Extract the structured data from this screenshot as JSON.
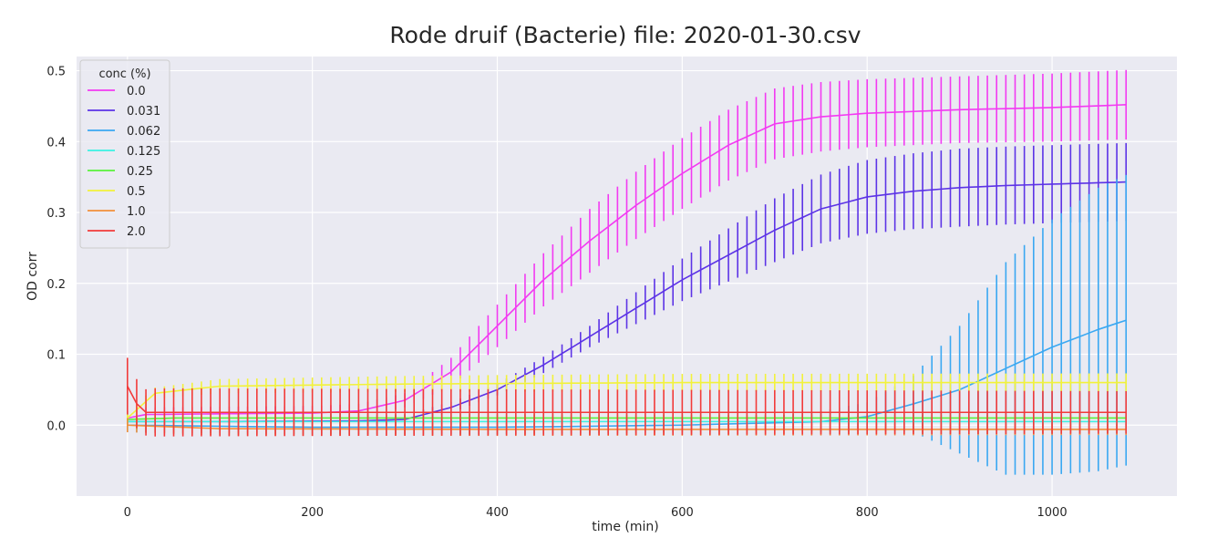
{
  "chart_data": {
    "type": "line",
    "title": "Rode druif (Bacterie) file: 2020-01-30.csv",
    "xlabel": "time (min)",
    "ylabel": "OD corr",
    "xlim": [
      -55,
      1135
    ],
    "ylim": [
      -0.1,
      0.52
    ],
    "x_ticks": [
      0,
      200,
      400,
      600,
      800,
      1000
    ],
    "y_ticks": [
      0.0,
      0.1,
      0.2,
      0.3,
      0.4,
      0.5
    ],
    "x_tick_labels": [
      "0",
      "200",
      "400",
      "600",
      "800",
      "1000"
    ],
    "y_tick_labels": [
      "0.0",
      "0.1",
      "0.2",
      "0.3",
      "0.4",
      "0.5"
    ],
    "grid": true,
    "legend": {
      "title": "conc (%)",
      "placement": "top-left"
    },
    "plot_background": "#eaeaf2",
    "sampling_interval_min": 10,
    "series": [
      {
        "name": "0.0",
        "color": "#f23af2",
        "points": [
          [
            0,
            0.01
          ],
          [
            20,
            0.015
          ],
          [
            100,
            0.016
          ],
          [
            200,
            0.017
          ],
          [
            250,
            0.02
          ],
          [
            300,
            0.035
          ],
          [
            350,
            0.075
          ],
          [
            400,
            0.14
          ],
          [
            450,
            0.205
          ],
          [
            500,
            0.26
          ],
          [
            550,
            0.31
          ],
          [
            600,
            0.355
          ],
          [
            650,
            0.395
          ],
          [
            700,
            0.425
          ],
          [
            750,
            0.435
          ],
          [
            800,
            0.44
          ],
          [
            900,
            0.445
          ],
          [
            1000,
            0.448
          ],
          [
            1080,
            0.452
          ]
        ],
        "error": [
          [
            0,
            0.01
          ],
          [
            300,
            0.01
          ],
          [
            400,
            0.03
          ],
          [
            500,
            0.045
          ],
          [
            600,
            0.05
          ],
          [
            700,
            0.05
          ],
          [
            800,
            0.048
          ],
          [
            900,
            0.047
          ],
          [
            1000,
            0.048
          ],
          [
            1080,
            0.049
          ]
        ]
      },
      {
        "name": "0.031",
        "color": "#5c33e6",
        "points": [
          [
            0,
            0.005
          ],
          [
            100,
            0.005
          ],
          [
            250,
            0.006
          ],
          [
            300,
            0.008
          ],
          [
            350,
            0.025
          ],
          [
            400,
            0.05
          ],
          [
            450,
            0.085
          ],
          [
            500,
            0.125
          ],
          [
            550,
            0.165
          ],
          [
            600,
            0.205
          ],
          [
            650,
            0.24
          ],
          [
            700,
            0.275
          ],
          [
            750,
            0.305
          ],
          [
            800,
            0.322
          ],
          [
            850,
            0.33
          ],
          [
            900,
            0.335
          ],
          [
            950,
            0.338
          ],
          [
            1000,
            0.34
          ],
          [
            1080,
            0.343
          ]
        ],
        "error": [
          [
            0,
            0.005
          ],
          [
            400,
            0.008
          ],
          [
            500,
            0.015
          ],
          [
            600,
            0.03
          ],
          [
            700,
            0.045
          ],
          [
            800,
            0.052
          ],
          [
            900,
            0.055
          ],
          [
            1000,
            0.055
          ],
          [
            1080,
            0.055
          ]
        ]
      },
      {
        "name": "0.062",
        "color": "#3aa8f2",
        "points": [
          [
            0,
            0.0
          ],
          [
            200,
            -0.003
          ],
          [
            400,
            -0.003
          ],
          [
            600,
            0.0
          ],
          [
            750,
            0.005
          ],
          [
            800,
            0.012
          ],
          [
            850,
            0.03
          ],
          [
            900,
            0.05
          ],
          [
            950,
            0.08
          ],
          [
            1000,
            0.11
          ],
          [
            1050,
            0.135
          ],
          [
            1080,
            0.148
          ]
        ],
        "error": [
          [
            0,
            0.01
          ],
          [
            700,
            0.01
          ],
          [
            800,
            0.02
          ],
          [
            850,
            0.04
          ],
          [
            900,
            0.09
          ],
          [
            950,
            0.15
          ],
          [
            1000,
            0.18
          ],
          [
            1050,
            0.2
          ],
          [
            1080,
            0.205
          ]
        ]
      },
      {
        "name": "0.125",
        "color": "#3af2e3",
        "points": [
          [
            0,
            0.005
          ],
          [
            50,
            0.005
          ],
          [
            1080,
            0.005
          ]
        ],
        "error": [
          [
            0,
            0.012
          ],
          [
            50,
            0.005
          ],
          [
            1080,
            0.005
          ]
        ]
      },
      {
        "name": "0.25",
        "color": "#59f23a",
        "points": [
          [
            0,
            0.008
          ],
          [
            50,
            0.01
          ],
          [
            1080,
            0.01
          ]
        ],
        "error": [
          [
            0,
            0.006
          ],
          [
            1080,
            0.004
          ]
        ]
      },
      {
        "name": "0.5",
        "color": "#f2f23a",
        "points": [
          [
            0,
            0.01
          ],
          [
            30,
            0.045
          ],
          [
            100,
            0.055
          ],
          [
            300,
            0.058
          ],
          [
            600,
            0.06
          ],
          [
            1080,
            0.06
          ]
        ],
        "error": [
          [
            0,
            0.01
          ],
          [
            30,
            0.008
          ],
          [
            100,
            0.01
          ],
          [
            400,
            0.012
          ],
          [
            1080,
            0.013
          ]
        ]
      },
      {
        "name": "1.0",
        "color": "#f2913a",
        "points": [
          [
            0,
            0.0
          ],
          [
            100,
            -0.005
          ],
          [
            400,
            -0.006
          ],
          [
            1080,
            -0.006
          ]
        ],
        "error": [
          [
            0,
            0.01
          ],
          [
            1080,
            0.008
          ]
        ]
      },
      {
        "name": "2.0",
        "color": "#f23a3a",
        "points": [
          [
            0,
            0.055
          ],
          [
            15,
            0.018
          ],
          [
            30,
            0.018
          ],
          [
            1080,
            0.018
          ]
        ],
        "error": [
          [
            0,
            0.04
          ],
          [
            15,
            0.032
          ],
          [
            30,
            0.034
          ],
          [
            1080,
            0.03
          ]
        ]
      }
    ]
  }
}
